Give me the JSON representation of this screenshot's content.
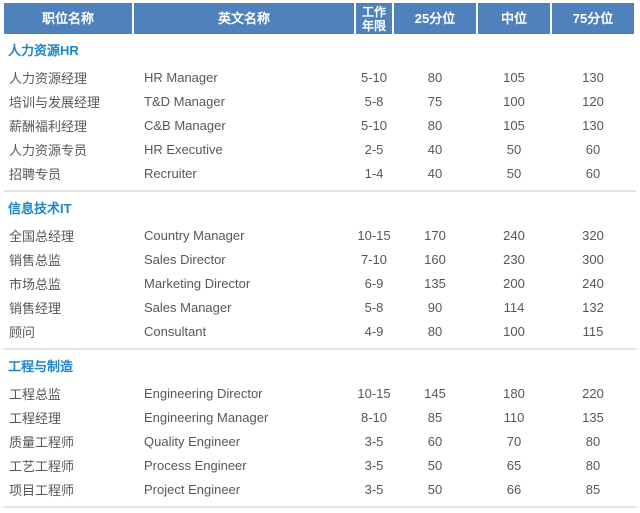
{
  "table": {
    "columns": [
      "职位名称",
      "英文名称",
      "工作年限",
      "25分位",
      "中位",
      "75分位"
    ],
    "sections": [
      {
        "title": "人力资源HR",
        "rows": [
          {
            "cn": "人力资源经理",
            "en": "HR Manager",
            "years": "5-10",
            "p25": "80",
            "median": "105",
            "p75": "130"
          },
          {
            "cn": "培训与发展经理",
            "en": "T&D Manager",
            "years": "5-8",
            "p25": "75",
            "median": "100",
            "p75": "120"
          },
          {
            "cn": "薪酬福利经理",
            "en": "C&B Manager",
            "years": "5-10",
            "p25": "80",
            "median": "105",
            "p75": "130"
          },
          {
            "cn": "人力资源专员",
            "en": "HR Executive",
            "years": "2-5",
            "p25": "40",
            "median": "50",
            "p75": "60"
          },
          {
            "cn": "招聘专员",
            "en": "Recruiter",
            "years": "1-4",
            "p25": "40",
            "median": "50",
            "p75": "60"
          }
        ]
      },
      {
        "title": "信息技术IT",
        "rows": [
          {
            "cn": "全国总经理",
            "en": "Country Manager",
            "years": "10-15",
            "p25": "170",
            "median": "240",
            "p75": "320"
          },
          {
            "cn": "销售总监",
            "en": "Sales Director",
            "years": "7-10",
            "p25": "160",
            "median": "230",
            "p75": "300"
          },
          {
            "cn": "市场总监",
            "en": "Marketing Director",
            "years": "6-9",
            "p25": "135",
            "median": "200",
            "p75": "240"
          },
          {
            "cn": "销售经理",
            "en": "Sales Manager",
            "years": "5-8",
            "p25": "90",
            "median": "114",
            "p75": "132"
          },
          {
            "cn": "顾问",
            "en": "Consultant",
            "years": "4-9",
            "p25": "80",
            "median": "100",
            "p75": "115"
          }
        ]
      },
      {
        "title": "工程与制造",
        "rows": [
          {
            "cn": "工程总监",
            "en": "Engineering Director",
            "years": "10-15",
            "p25": "145",
            "median": "180",
            "p75": "220"
          },
          {
            "cn": "工程经理",
            "en": "Engineering Manager",
            "years": "8-10",
            "p25": "85",
            "median": "110",
            "p75": "135"
          },
          {
            "cn": "质量工程师",
            "en": "Quality Engineer",
            "years": "3-5",
            "p25": "60",
            "median": "70",
            "p75": "80"
          },
          {
            "cn": "工艺工程师",
            "en": "Process Engineer",
            "years": "3-5",
            "p25": "50",
            "median": "65",
            "p75": "80"
          },
          {
            "cn": "项目工程师",
            "en": "Project Engineer",
            "years": "3-5",
            "p25": "50",
            "median": "66",
            "p75": "85"
          }
        ]
      }
    ]
  },
  "colors": {
    "header_bg": "#4F81BD",
    "header_text": "#FFFFFF",
    "section_title": "#1D86C6",
    "body_text": "#56575A",
    "divider": "#E3E3E3"
  }
}
